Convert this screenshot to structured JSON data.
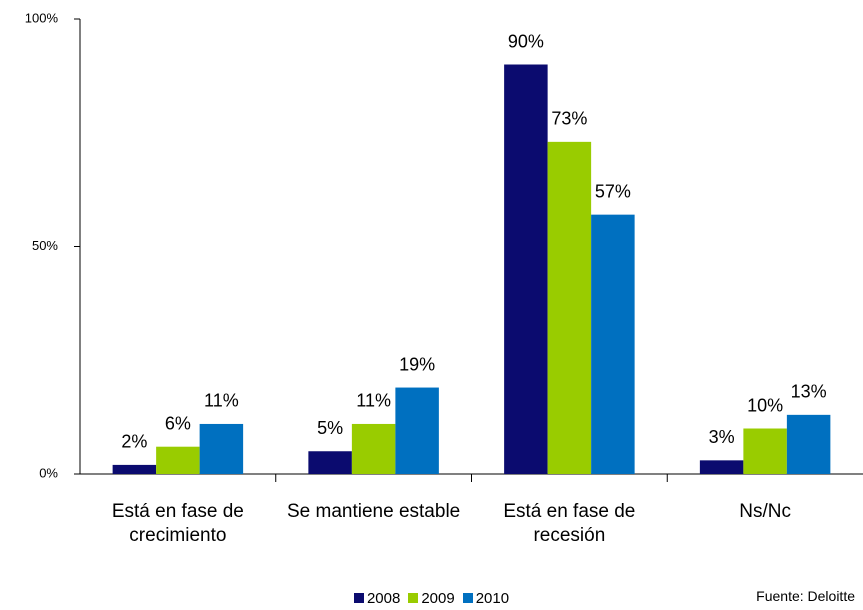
{
  "chart_data": {
    "type": "bar",
    "categories": [
      "Está en fase de crecimiento",
      "Se mantiene estable",
      "Está en fase de recesión",
      "Ns/Nc"
    ],
    "series": [
      {
        "name": "2008",
        "color": "#0b0b6f",
        "values": [
          2,
          5,
          90,
          3
        ],
        "value_labels": [
          "2%",
          "5%",
          "90%",
          "3%"
        ]
      },
      {
        "name": "2009",
        "color": "#99cc00",
        "values": [
          6,
          11,
          73,
          10
        ],
        "value_labels": [
          "6%",
          "11%",
          "73%",
          "10%"
        ]
      },
      {
        "name": "2010",
        "color": "#0070c0",
        "values": [
          11,
          19,
          57,
          13
        ],
        "value_labels": [
          "11%",
          "19%",
          "57%",
          "13%"
        ]
      }
    ],
    "ylim": [
      0,
      100
    ],
    "yticks": [
      {
        "value": 0,
        "label": "0%"
      },
      {
        "value": 50,
        "label": "50%"
      },
      {
        "value": 100,
        "label": "100%"
      }
    ],
    "grid": false,
    "legend": "bottom",
    "source": "Fuente: Deloitte"
  }
}
